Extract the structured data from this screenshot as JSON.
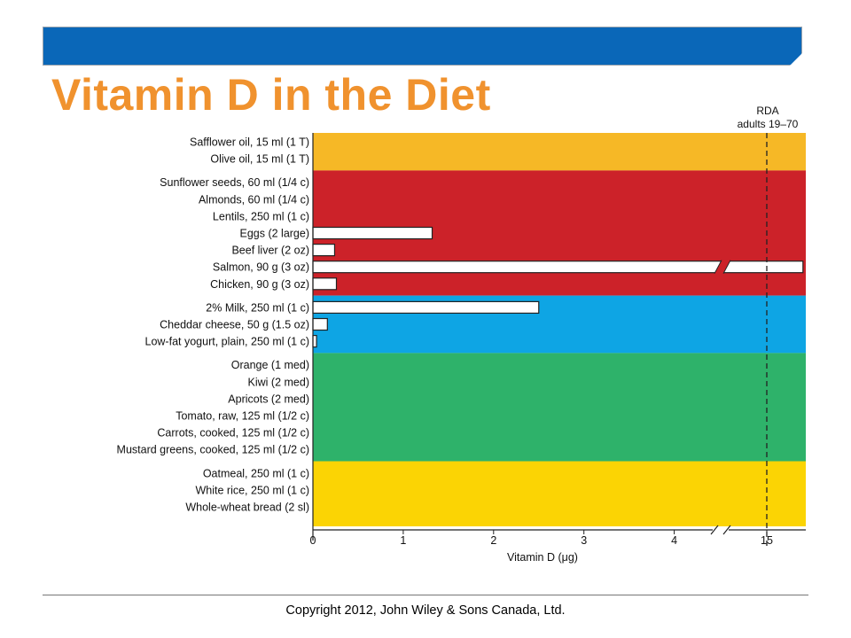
{
  "title": "Vitamin D in the Diet",
  "copyright": "Copyright 2012, John Wiley & Sons Canada, Ltd.",
  "chart_data": {
    "type": "bar",
    "orientation": "horizontal",
    "xlabel": "Vitamin D (μg)",
    "xlim": [
      0,
      15.4
    ],
    "axis_break": "between 4 and 15",
    "xticks": [
      "0",
      "1",
      "2",
      "3",
      "4",
      "15"
    ],
    "rda": {
      "label_line1": "RDA",
      "label_line2": "adults 19–70",
      "value": 15
    },
    "groups": [
      {
        "color": "#f6b826",
        "items": [
          {
            "label": "Safflower oil, 15 ml (1 T)",
            "value": 0
          },
          {
            "label": "Olive oil, 15 ml (1 T)",
            "value": 0
          }
        ]
      },
      {
        "color": "#cc2229",
        "items": [
          {
            "label": "Sunflower seeds, 60 ml (1/4 c)",
            "value": 0
          },
          {
            "label": "Almonds, 60 ml (1/4 c)",
            "value": 0
          },
          {
            "label": "Lentils, 250 ml (1 c)",
            "value": 0
          },
          {
            "label": "Eggs (2 large)",
            "value": 1.32
          },
          {
            "label": "Beef liver (2 oz)",
            "value": 0.24
          },
          {
            "label": "Salmon, 90 g (3 oz)",
            "value": 15.4,
            "broken": true
          },
          {
            "label": "Chicken, 90 g (3 oz)",
            "value": 0.26
          }
        ]
      },
      {
        "color": "#0ea5e4",
        "items": [
          {
            "label": "2% Milk, 250 ml (1 c)",
            "value": 2.5
          },
          {
            "label": "Cheddar cheese, 50 g (1.5 oz)",
            "value": 0.16
          },
          {
            "label": "Low-fat yogurt, plain, 250 ml (1 c)",
            "value": 0.04
          }
        ]
      },
      {
        "color": "#2eb26a",
        "items": [
          {
            "label": "Orange (1 med)",
            "value": 0
          },
          {
            "label": "Kiwi (2 med)",
            "value": 0
          },
          {
            "label": "Apricots (2 med)",
            "value": 0
          },
          {
            "label": "Tomato, raw, 125 ml (1/2 c)",
            "value": 0
          },
          {
            "label": "Carrots, cooked, 125 ml (1/2 c)",
            "value": 0
          },
          {
            "label": "Mustard greens, cooked, 125 ml (1/2 c)",
            "value": 0
          }
        ]
      },
      {
        "color": "#fbd404",
        "items": [
          {
            "label": "Oatmeal, 250 ml (1 c)",
            "value": 0
          },
          {
            "label": "White rice, 250 ml (1 c)",
            "value": 0
          },
          {
            "label": "Whole-wheat bread (2 sl)",
            "value": 0
          }
        ]
      }
    ],
    "grid": false,
    "legend": "none"
  }
}
